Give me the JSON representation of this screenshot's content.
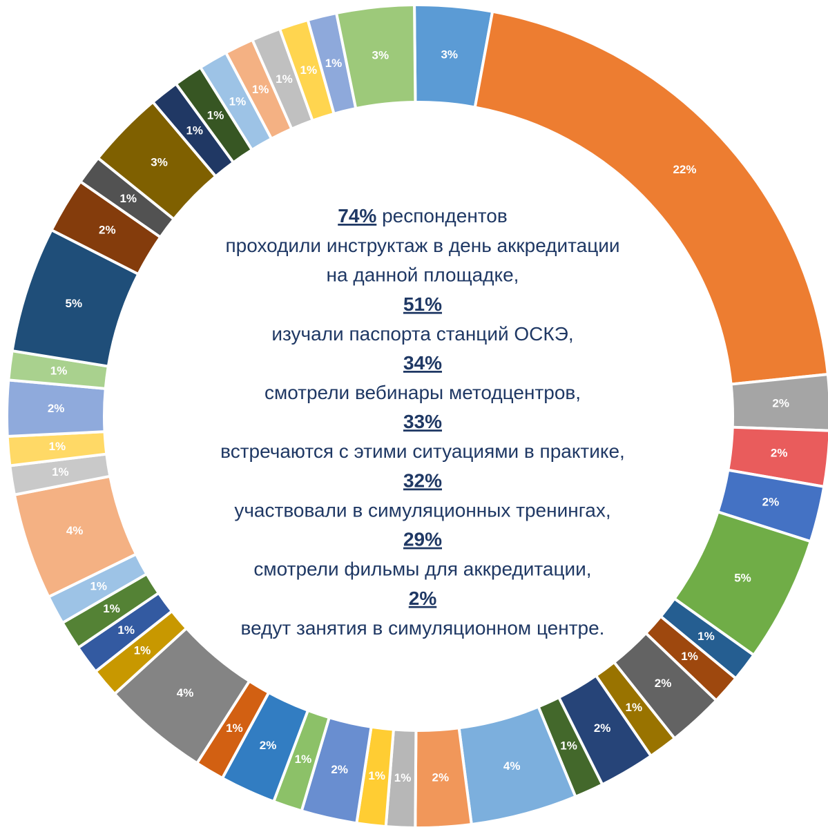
{
  "chart_data": {
    "type": "donut",
    "values": [
      3.2,
      21.6,
      2.3,
      2.3,
      2.3,
      5.2,
      1.2,
      1.2,
      2.3,
      1.2,
      2.3,
      1.2,
      4.4,
      2.3,
      1.2,
      1.2,
      2.3,
      1.2,
      2.3,
      1.2,
      4.4,
      1.2,
      1.2,
      1.2,
      1.2,
      4.4,
      1.2,
      1.2,
      2.3,
      1.2,
      5.2,
      2.3,
      1.2,
      3.2,
      1.2,
      1.2,
      1.2,
      1.2,
      1.2,
      1.2,
      1.2,
      3.2
    ],
    "value_labels": [
      "3%",
      "22%",
      "2%",
      "2%",
      "2%",
      "5%",
      "1%",
      "1%",
      "2%",
      "1%",
      "2%",
      "1%",
      "4%",
      "2%",
      "1%",
      "1%",
      "2%",
      "1%",
      "2%",
      "1%",
      "4%",
      "1%",
      "1%",
      "1%",
      "1%",
      "4%",
      "1%",
      "1%",
      "2%",
      "1%",
      "5%",
      "2%",
      "1%",
      "3%",
      "1%",
      "1%",
      "1%",
      "1%",
      "1%",
      "1%",
      "1%",
      "3%"
    ],
    "colors": [
      "#5b9bd5",
      "#ed7d31",
      "#a5a5a5",
      "#e95c5c",
      "#4472c4",
      "#70ad47",
      "#255e91",
      "#9e480e",
      "#636363",
      "#997300",
      "#264478",
      "#43682b",
      "#7cafdd",
      "#f1975a",
      "#b7b7b7",
      "#ffcd33",
      "#698ed0",
      "#8cc168",
      "#327dc2",
      "#d26012",
      "#848484",
      "#c89800",
      "#335aa1",
      "#548235",
      "#9dc3e6",
      "#f4b183",
      "#c9c9c9",
      "#ffd966",
      "#8faadc",
      "#a9d18e",
      "#1f4e79",
      "#843c0c",
      "#525252",
      "#7f6000",
      "#203864",
      "#375623",
      "#9dc3e6",
      "#f4b183",
      "#c0c0c0",
      "#ffd54f",
      "#8ea9db",
      "#9dc97a"
    ],
    "annotations": [
      {
        "highlight": "74%",
        "rest": " респондентов",
        "lines": [
          "проходили инструктаж в день аккредитации",
          "на данной площадке,"
        ]
      },
      {
        "highlight": "51%",
        "lines": [
          "изучали паспорта станций ОСКЭ,"
        ]
      },
      {
        "highlight": "34%",
        "lines": [
          "смотрели вебинары методцентров,"
        ]
      },
      {
        "highlight": "33%",
        "lines": [
          "встречаются с этими ситуациями в практике,"
        ]
      },
      {
        "highlight": "32%",
        "lines": [
          "участвовали в симуляционных тренингах,"
        ]
      },
      {
        "highlight": "29%",
        "lines": [
          "смотрели фильмы для аккредитации,"
        ]
      },
      {
        "highlight": "2%",
        "lines": [
          "ведут занятия в симуляционном центре."
        ]
      }
    ]
  }
}
